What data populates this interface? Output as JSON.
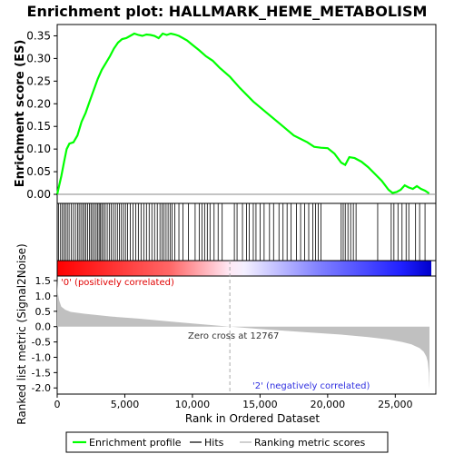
{
  "chart_data": {
    "type": "line",
    "title": "Enrichment plot: HALLMARK_HEME_METABOLISM",
    "xlabel": "Rank in Ordered Dataset",
    "xlim": [
      0,
      28000
    ],
    "x_ticks": [
      0,
      5000,
      10000,
      15000,
      20000,
      25000
    ],
    "x_tick_labels": [
      "0",
      "5,000",
      "10,000",
      "15,000",
      "20,000",
      "25,000"
    ],
    "es_panel": {
      "ylabel": "Enrichment score (ES)",
      "ylim": [
        -0.02,
        0.375
      ],
      "y_ticks": [
        0.0,
        0.05,
        0.1,
        0.15,
        0.2,
        0.25,
        0.3,
        0.35
      ],
      "y_tick_labels": [
        "0.00",
        "0.05",
        "0.10",
        "0.15",
        "0.20",
        "0.25",
        "0.30",
        "0.35"
      ],
      "series_name": "Enrichment profile",
      "color": "#00ff00",
      "x": [
        0,
        150,
        300,
        500,
        700,
        900,
        1200,
        1500,
        1800,
        2100,
        2400,
        2700,
        3000,
        3300,
        3600,
        3900,
        4200,
        4500,
        4800,
        5100,
        5400,
        5700,
        6000,
        6300,
        6600,
        6900,
        7200,
        7500,
        7800,
        8100,
        8400,
        8700,
        9000,
        9300,
        9600,
        10000,
        10500,
        11000,
        11500,
        12000,
        12767,
        13500,
        14500,
        15500,
        16500,
        17500,
        18500,
        19000,
        19500,
        20000,
        20500,
        21000,
        21300,
        21600,
        22000,
        22500,
        23000,
        23500,
        24000,
        24500,
        24800,
        25100,
        25400,
        25700,
        26000,
        26300,
        26600,
        26900,
        27200,
        27500
      ],
      "y": [
        0.0,
        0.02,
        0.04,
        0.07,
        0.1,
        0.112,
        0.115,
        0.13,
        0.16,
        0.18,
        0.205,
        0.23,
        0.255,
        0.275,
        0.29,
        0.305,
        0.322,
        0.335,
        0.343,
        0.345,
        0.35,
        0.355,
        0.352,
        0.35,
        0.353,
        0.352,
        0.35,
        0.345,
        0.355,
        0.352,
        0.355,
        0.353,
        0.35,
        0.345,
        0.34,
        0.33,
        0.318,
        0.305,
        0.295,
        0.28,
        0.26,
        0.235,
        0.205,
        0.18,
        0.155,
        0.13,
        0.115,
        0.105,
        0.103,
        0.102,
        0.09,
        0.07,
        0.065,
        0.082,
        0.08,
        0.072,
        0.06,
        0.045,
        0.03,
        0.01,
        0.003,
        0.005,
        0.01,
        0.02,
        0.015,
        0.012,
        0.018,
        0.012,
        0.008,
        0.002
      ]
    },
    "hits_panel": {
      "series_name": "Hits",
      "color": "#000000",
      "hit_ranks": [
        100,
        250,
        380,
        500,
        620,
        750,
        880,
        1050,
        1200,
        1350,
        1500,
        1620,
        1750,
        1880,
        2000,
        2120,
        2250,
        2380,
        2500,
        2620,
        2750,
        2880,
        3000,
        3100,
        3200,
        3300,
        3420,
        3550,
        3700,
        3850,
        4000,
        4150,
        4300,
        4450,
        4600,
        4750,
        4900,
        5050,
        5200,
        5400,
        5600,
        5800,
        6000,
        6200,
        6400,
        6600,
        6800,
        7000,
        7200,
        7400,
        7600,
        7750,
        7900,
        8050,
        8200,
        8350,
        8500,
        8700,
        9000,
        9300,
        9700,
        10200,
        10500,
        10700,
        10900,
        11100,
        11300,
        11600,
        11900,
        12200,
        13100,
        13300,
        13700,
        14000,
        14200,
        14500,
        14700,
        15000,
        15300,
        15700,
        16000,
        16400,
        16700,
        17000,
        17300,
        17700,
        18000,
        18300,
        18600,
        18900,
        19100,
        19300,
        19500,
        21000,
        21150,
        21300,
        21500,
        21700,
        21900,
        22100,
        23700,
        24700,
        24900,
        25200,
        25500,
        25800,
        26000,
        26500,
        26800,
        27200
      ]
    },
    "metric_panel": {
      "ylabel": "Ranked list metric (Signal2Noise)",
      "ylim": [
        -2.2,
        1.65
      ],
      "y_ticks": [
        -2.0,
        -1.5,
        -1.0,
        -0.5,
        0.0,
        0.5,
        1.0,
        1.5
      ],
      "y_tick_labels": [
        "-2.0",
        "-1.5",
        "-1.0",
        "-0.5",
        "0.0",
        "0.5",
        "1.0",
        "1.5"
      ],
      "series_name": "Ranking metric scores",
      "color": "#c0c0c0",
      "x": [
        0,
        50,
        150,
        300,
        600,
        1000,
        2000,
        4000,
        6000,
        8000,
        10000,
        12767,
        15000,
        18000,
        21000,
        23000,
        24500,
        25500,
        26200,
        26800,
        27100,
        27300,
        27400,
        27480,
        27530
      ],
      "y": [
        1.52,
        1.1,
        0.85,
        0.65,
        0.55,
        0.48,
        0.42,
        0.33,
        0.26,
        0.18,
        0.1,
        0.0,
        -0.08,
        -0.17,
        -0.26,
        -0.34,
        -0.42,
        -0.5,
        -0.58,
        -0.7,
        -0.82,
        -0.98,
        -1.15,
        -1.5,
        -2.05
      ]
    },
    "annotations": {
      "zero_cross_rank": 12767,
      "zero_cross_label": "Zero cross at 12767",
      "positive_label": "'0' (positively correlated)",
      "negative_label": "'2' (negatively correlated)"
    },
    "legend": {
      "placement": "bottom",
      "entries": [
        "Enrichment profile",
        "Hits",
        "Ranking metric scores"
      ]
    },
    "grid": false
  }
}
